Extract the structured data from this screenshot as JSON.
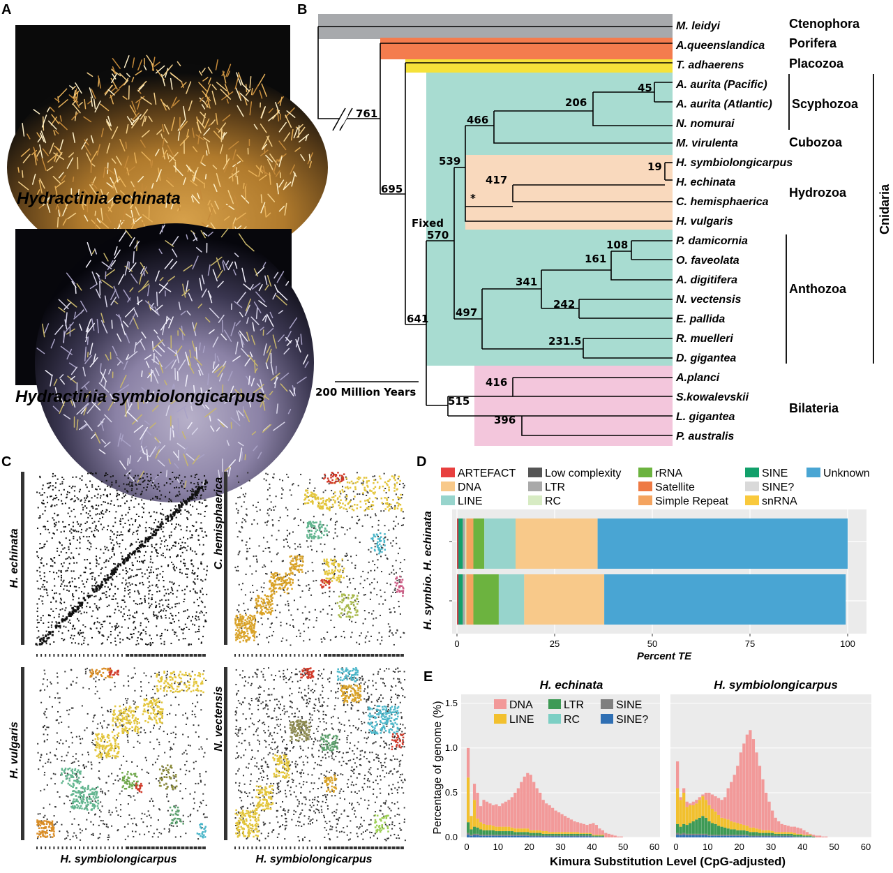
{
  "panels": {
    "A": "A",
    "B": "B",
    "C": "C",
    "D": "D",
    "E": "E"
  },
  "photos": {
    "top_caption": "Hydractinia echinata",
    "bottom_caption": "Hydractinia symbiolongicarpus"
  },
  "tree": {
    "species": [
      "M. leidyi",
      "A.queenslandica",
      "T. adhaerens",
      "A. aurita (Pacific)",
      "A. aurita (Atlantic)",
      "N. nomurai",
      "M. virulenta",
      "H. symbiolongicarpus",
      "H. echinata",
      "C. hemisphaerica",
      "H. vulgaris",
      "P. damicornia",
      "O. faveolata",
      "A. digitifera",
      "N. vectensis",
      "E. pallida",
      "R. muelleri",
      "D. gigantea",
      "A.planci",
      "S.kowalevskii",
      "L. gigantea",
      "P. australis"
    ],
    "taxa": {
      "ctenophora": "Ctenophora",
      "porifera": "Porifera",
      "placozoa": "Placozoa",
      "scyphozoa": "Scyphozoa",
      "cubozoa": "Cubozoa",
      "hydrozoa": "Hydrozoa",
      "anthozoa": "Anthozoa",
      "bilateria": "Bilateria",
      "cnidaria": "Cnidaria"
    },
    "node_ages": {
      "n761": "761",
      "n695": "695",
      "n641": "641",
      "fixed": "Fixed",
      "n570": "570",
      "n539": "539",
      "n466": "466",
      "n206": "206",
      "n45": "45",
      "n417": "417",
      "n19": "19",
      "star": "*",
      "n497": "497",
      "n341": "341",
      "n161": "161",
      "n108": "108",
      "n242": "242",
      "n231": "231.5",
      "n515": "515",
      "n416": "416",
      "n396": "396"
    },
    "scale_label": "200 Million Years",
    "colors": {
      "ctenophora": "#a7a9ac",
      "porifera": "#f47c4e",
      "placozoa": "#f5e23a",
      "cnidaria": "#a8dcd1",
      "hydrozoa": "#f9d9bd",
      "bilateria": "#f3c6dc"
    }
  },
  "synteny": {
    "top_left_y": "H. echinata",
    "top_right_y": "C. hemisphaerica",
    "bottom_left_y": "H. vulgaris",
    "bottom_right_y": "N. vectensis",
    "x_label_left": "H. symbiolongicarpus",
    "x_label_right": "H. symbiolongicarpus"
  },
  "chart_data": [
    {
      "type": "bar",
      "orientation": "horizontal",
      "stacked": true,
      "categories": [
        "H. echinata",
        "H. symbio."
      ],
      "xlabel": "Percent TE",
      "xlim": [
        0,
        100
      ],
      "xticks": [
        0,
        25,
        50,
        75,
        100
      ],
      "legend": [
        "ARTEFACT",
        "Low complexity",
        "rRNA",
        "SINE",
        "Unknown",
        "DNA",
        "LTR",
        "Satellite",
        "SINE?",
        "LINE",
        "RC",
        "Simple Repeat",
        "snRNA"
      ],
      "series": [
        {
          "name": "ARTEFACT",
          "values": [
            0.2,
            0.2
          ]
        },
        {
          "name": "Low complexity",
          "values": [
            0.3,
            0.3
          ]
        },
        {
          "name": "SINE",
          "values": [
            1.0,
            1.0
          ]
        },
        {
          "name": "LTR",
          "values": [
            0.6,
            0.6
          ]
        },
        {
          "name": "RC",
          "values": [
            0.3,
            0.3
          ]
        },
        {
          "name": "Simple Repeat",
          "values": [
            1.8,
            1.8
          ]
        },
        {
          "name": "rRNA",
          "values": [
            2.8,
            6.5
          ]
        },
        {
          "name": "LINE",
          "values": [
            8.0,
            6.5
          ]
        },
        {
          "name": "DNA",
          "values": [
            21.0,
            20.5
          ]
        },
        {
          "name": "Unknown",
          "values": [
            64.0,
            61.8
          ]
        }
      ],
      "colors": {
        "ARTEFACT": "#e8403f",
        "Low complexity": "#555555",
        "rRNA": "#6cb33f",
        "SINE": "#12a06b",
        "Unknown": "#49a5d3",
        "DNA": "#f8c98a",
        "LTR": "#a9a9a9",
        "Satellite": "#ee7a44",
        "SINE?": "#d9d9d9",
        "LINE": "#97d4cc",
        "RC": "#d7ebc3",
        "Simple Repeat": "#f4a460",
        "snRNA": "#f9c93c"
      }
    },
    {
      "type": "bar",
      "stacked": true,
      "panels": [
        "H. echinata",
        "H. symbiolongicarpus"
      ],
      "xlabel": "Kimura Substitution Level (CpG-adjusted)",
      "ylabel": "Percentage of genome (%)",
      "xlim": [
        0,
        60
      ],
      "ylim": [
        0,
        1.6
      ],
      "xticks": [
        0,
        10,
        20,
        30,
        40,
        50,
        60
      ],
      "yticks": [
        0.0,
        0.5,
        1.0,
        1.5
      ],
      "legend": [
        "DNA",
        "LTR",
        "SINE",
        "LINE",
        "RC",
        "SINE?"
      ],
      "colors": {
        "DNA": "#f29999",
        "LINE": "#f2c02e",
        "LTR": "#3e9a55",
        "RC": "#7ccfc4",
        "SINE": "#7f7f7f",
        "SINE?": "#2f6fb3"
      },
      "series_h_echinata": {
        "total": [
          1.0,
          0.2,
          0.6,
          0.5,
          0.35,
          0.42,
          0.4,
          0.38,
          0.36,
          0.37,
          0.35,
          0.38,
          0.4,
          0.42,
          0.45,
          0.5,
          0.55,
          0.62,
          0.68,
          0.72,
          0.7,
          0.62,
          0.55,
          0.5,
          0.42,
          0.38,
          0.36,
          0.33,
          0.3,
          0.28,
          0.26,
          0.24,
          0.22,
          0.2,
          0.18,
          0.17,
          0.16,
          0.15,
          0.14,
          0.15,
          0.16,
          0.14,
          0.1,
          0.08,
          0.05,
          0.04,
          0.03,
          0.02,
          0.01,
          0.01
        ],
        "LINE": [
          0.5,
          0.15,
          0.3,
          0.1,
          0.08,
          0.07,
          0.06,
          0.06,
          0.05,
          0.05,
          0.05,
          0.05,
          0.05,
          0.05,
          0.04,
          0.04,
          0.04,
          0.04,
          0.04,
          0.04,
          0.03,
          0.03,
          0.03,
          0.03,
          0.03,
          0.03,
          0.02,
          0.02,
          0.02,
          0.02,
          0.02,
          0.02,
          0.02,
          0.02,
          0.02,
          0.02,
          0.01,
          0.01,
          0.01,
          0.01,
          0.01,
          0.01,
          0.01,
          0.01,
          0.0,
          0.0,
          0.0,
          0.0,
          0.0,
          0.0
        ],
        "LTR": [
          0.12,
          0.06,
          0.08,
          0.07,
          0.06,
          0.05,
          0.05,
          0.05,
          0.05,
          0.04,
          0.04,
          0.04,
          0.04,
          0.04,
          0.04,
          0.03,
          0.03,
          0.03,
          0.03,
          0.03,
          0.03,
          0.03,
          0.03,
          0.03,
          0.02,
          0.02,
          0.02,
          0.02,
          0.02,
          0.02,
          0.02,
          0.02,
          0.02,
          0.02,
          0.02,
          0.02,
          0.02,
          0.02,
          0.02,
          0.02,
          0.01,
          0.01,
          0.01,
          0.01,
          0.0,
          0.0,
          0.0,
          0.0,
          0.0,
          0.0
        ],
        "SINE": [
          0.05,
          0.03,
          0.04,
          0.04,
          0.03,
          0.03,
          0.03,
          0.03,
          0.03,
          0.03,
          0.03,
          0.03,
          0.03,
          0.03,
          0.03,
          0.03,
          0.03,
          0.03,
          0.03,
          0.03,
          0.02,
          0.02,
          0.02,
          0.02,
          0.02,
          0.02,
          0.02,
          0.02,
          0.02,
          0.02,
          0.02,
          0.02,
          0.02,
          0.02,
          0.02,
          0.02,
          0.02,
          0.02,
          0.02,
          0.02,
          0.01,
          0.01,
          0.01,
          0.01,
          0.0,
          0.0,
          0.0,
          0.0,
          0.0,
          0.0
        ]
      },
      "series_h_symbiolongicarpus": {
        "total": [
          0.85,
          0.45,
          0.55,
          0.4,
          0.38,
          0.4,
          0.42,
          0.45,
          0.48,
          0.5,
          0.5,
          0.48,
          0.46,
          0.44,
          0.42,
          0.45,
          0.55,
          0.62,
          0.7,
          0.8,
          0.95,
          1.05,
          1.15,
          1.2,
          1.1,
          0.95,
          0.8,
          0.65,
          0.5,
          0.4,
          0.3,
          0.22,
          0.18,
          0.15,
          0.14,
          0.13,
          0.12,
          0.12,
          0.11,
          0.1,
          0.08,
          0.06,
          0.04,
          0.03,
          0.02,
          0.02,
          0.01,
          0.01,
          0.0,
          0.0
        ],
        "LINE": [
          0.4,
          0.3,
          0.35,
          0.2,
          0.2,
          0.18,
          0.18,
          0.2,
          0.22,
          0.2,
          0.18,
          0.16,
          0.14,
          0.12,
          0.1,
          0.1,
          0.1,
          0.09,
          0.08,
          0.08,
          0.07,
          0.06,
          0.06,
          0.05,
          0.05,
          0.04,
          0.04,
          0.03,
          0.03,
          0.03,
          0.02,
          0.02,
          0.02,
          0.02,
          0.02,
          0.02,
          0.02,
          0.02,
          0.01,
          0.01,
          0.01,
          0.01,
          0.01,
          0.0,
          0.0,
          0.0,
          0.0,
          0.0,
          0.0,
          0.0
        ],
        "LTR": [
          0.1,
          0.08,
          0.1,
          0.1,
          0.12,
          0.14,
          0.16,
          0.18,
          0.2,
          0.18,
          0.15,
          0.13,
          0.12,
          0.1,
          0.09,
          0.08,
          0.07,
          0.06,
          0.06,
          0.05,
          0.05,
          0.05,
          0.04,
          0.04,
          0.04,
          0.04,
          0.03,
          0.03,
          0.03,
          0.03,
          0.03,
          0.02,
          0.02,
          0.02,
          0.02,
          0.02,
          0.02,
          0.02,
          0.02,
          0.02,
          0.01,
          0.01,
          0.01,
          0.01,
          0.0,
          0.0,
          0.0,
          0.0,
          0.0,
          0.0
        ],
        "SINE": [
          0.05,
          0.04,
          0.05,
          0.04,
          0.04,
          0.04,
          0.04,
          0.04,
          0.04,
          0.04,
          0.03,
          0.03,
          0.03,
          0.03,
          0.03,
          0.03,
          0.03,
          0.03,
          0.03,
          0.03,
          0.03,
          0.03,
          0.03,
          0.02,
          0.02,
          0.02,
          0.02,
          0.02,
          0.02,
          0.02,
          0.02,
          0.02,
          0.02,
          0.02,
          0.02,
          0.02,
          0.02,
          0.01,
          0.01,
          0.01,
          0.01,
          0.01,
          0.01,
          0.0,
          0.0,
          0.0,
          0.0,
          0.0,
          0.0,
          0.0
        ]
      }
    }
  ]
}
